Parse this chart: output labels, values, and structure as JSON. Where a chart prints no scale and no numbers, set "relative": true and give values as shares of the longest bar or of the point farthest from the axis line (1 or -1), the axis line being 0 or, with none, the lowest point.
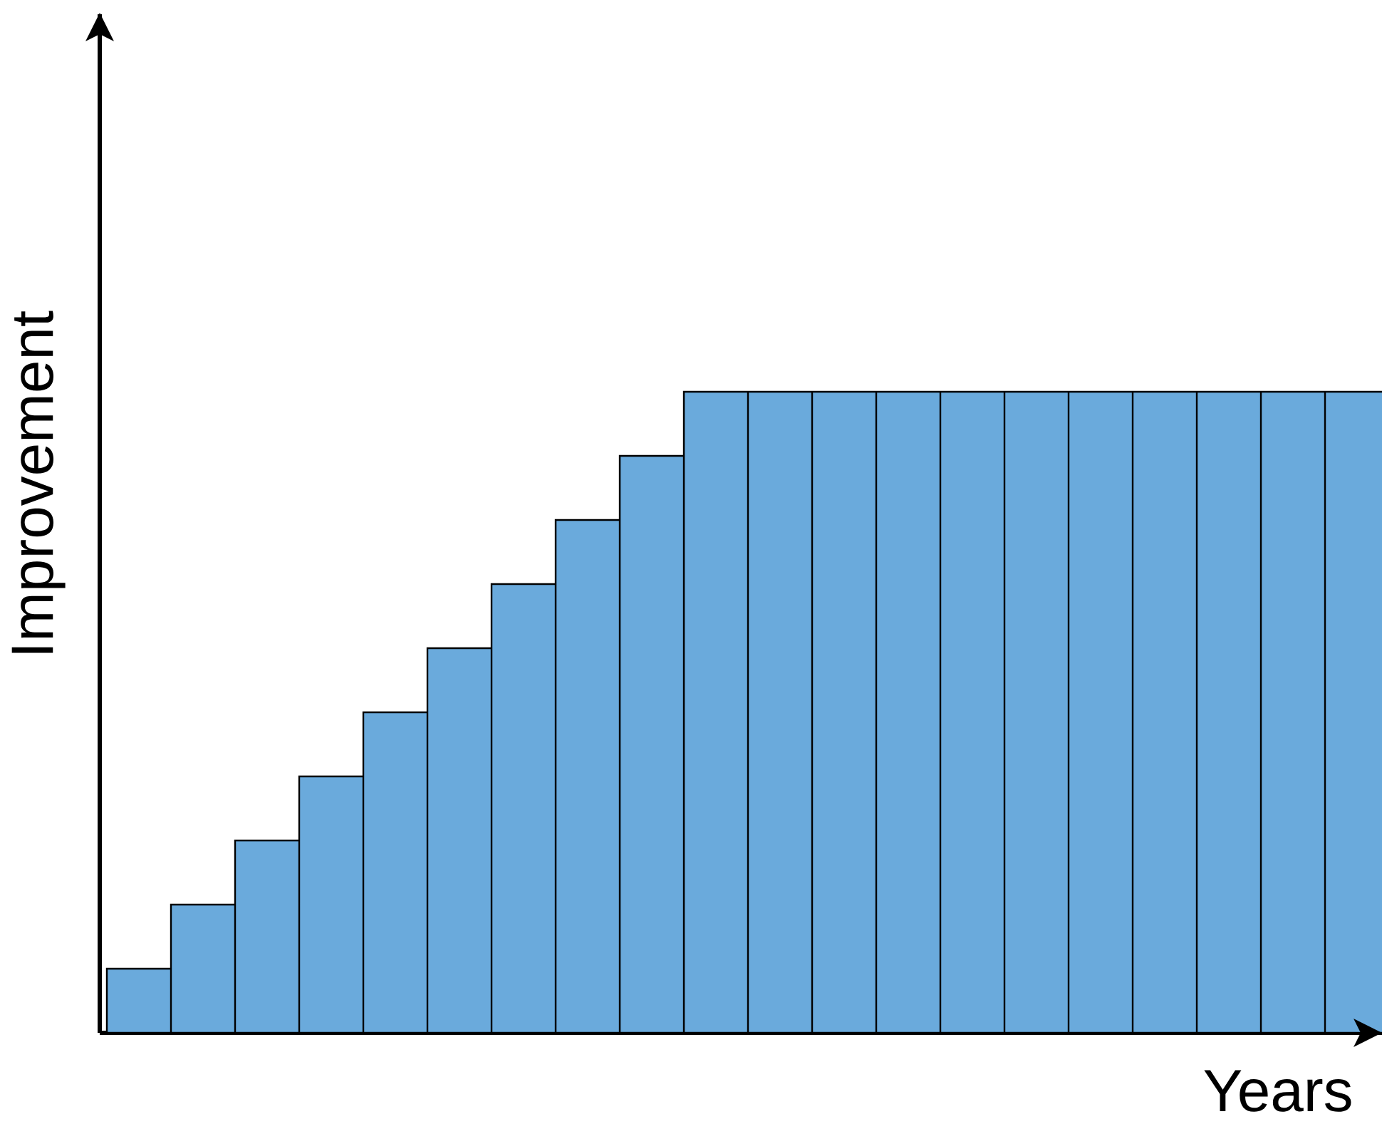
{
  "chart_data": {
    "type": "bar",
    "relative": true,
    "xlabel": "Years",
    "ylabel": "Improvement",
    "color": "#6aaadc",
    "categories": [
      null,
      null,
      null,
      null,
      null,
      null,
      null,
      null,
      null,
      null,
      null,
      null,
      null,
      null,
      null,
      null,
      null,
      null,
      null,
      null
    ],
    "values": [
      0.1,
      0.2,
      0.3,
      0.4,
      0.5,
      0.6,
      0.7,
      0.8,
      0.9,
      1,
      1,
      1,
      1,
      1,
      1,
      1,
      1,
      1,
      1,
      1
    ]
  }
}
